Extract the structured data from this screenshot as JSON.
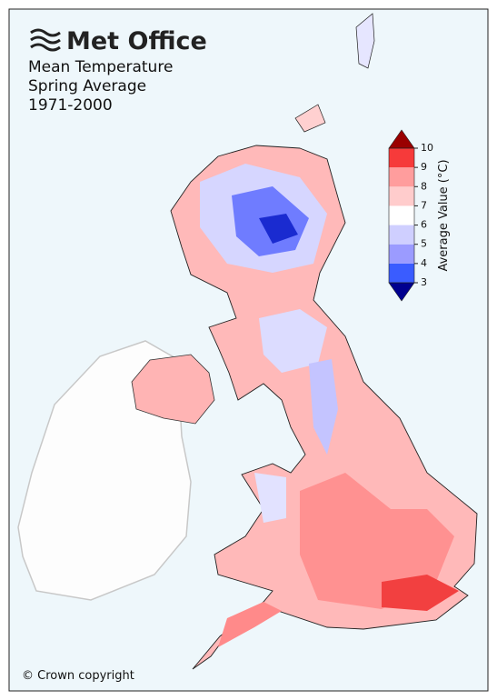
{
  "header": {
    "logo": "Met Office",
    "title_lines": [
      "Mean Temperature",
      "Spring Average",
      "1971-2000"
    ]
  },
  "colorbar": {
    "label": "Average Value (°C)",
    "ticks": [
      3,
      4,
      5,
      6,
      7,
      8,
      9,
      10
    ],
    "colors": [
      "#3a5cff",
      "#9b9bff",
      "#cfcfff",
      "#ffffff",
      "#ffcccc",
      "#ff9d9d",
      "#f63a3a"
    ],
    "under_color": "#00008f",
    "over_color": "#9a0000"
  },
  "footer": {
    "copyright": "© Crown copyright"
  }
}
